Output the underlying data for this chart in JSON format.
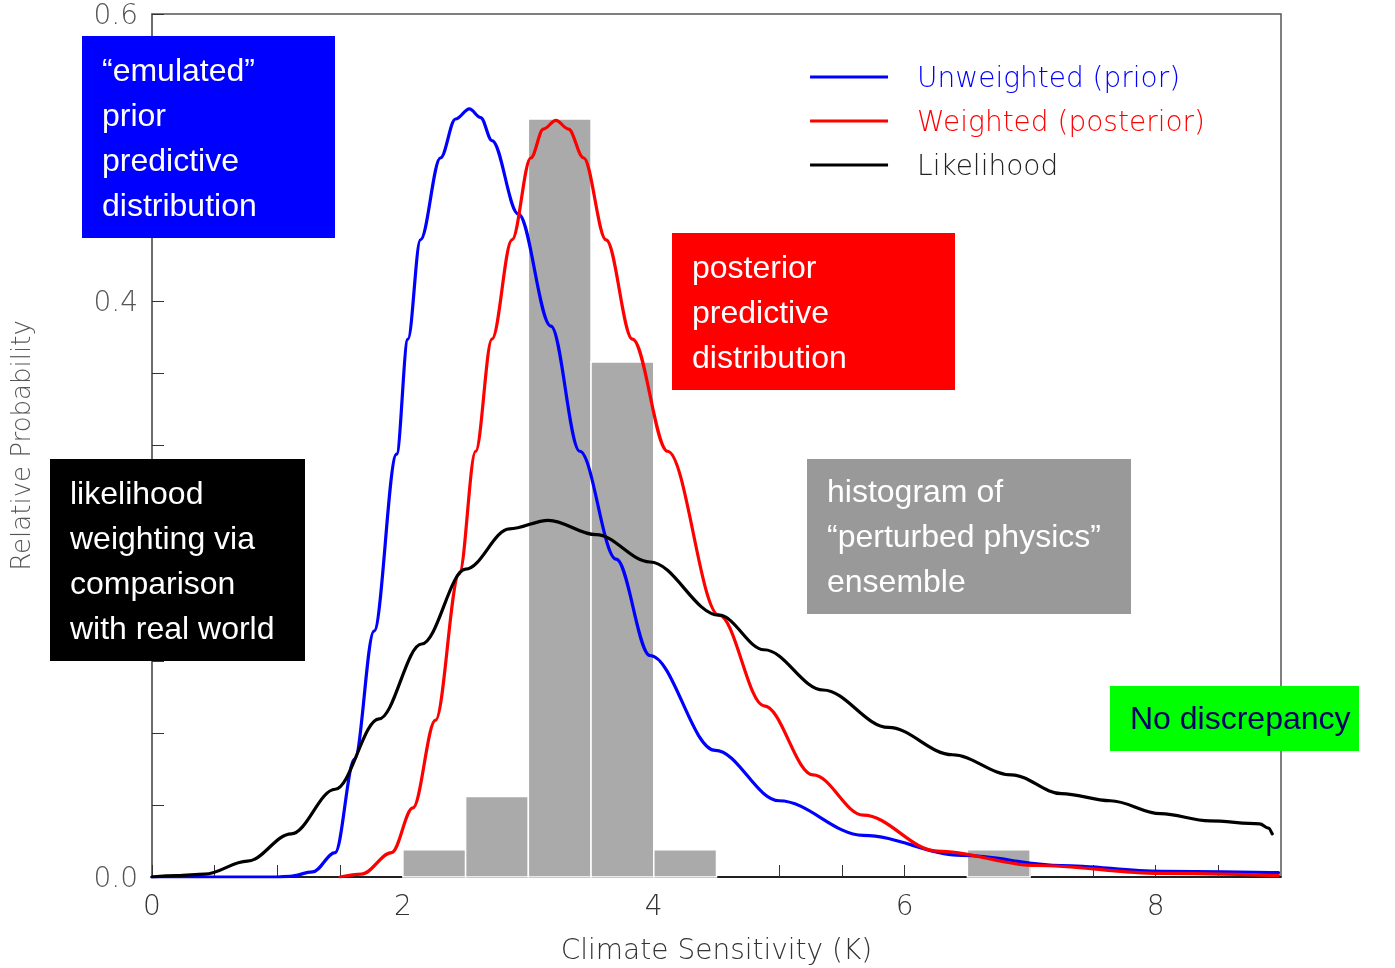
{
  "chart_data": {
    "type": "line",
    "xlabel": "Climate Sensitivity (K)",
    "ylabel": "Relative Probability",
    "xlim": [
      0,
      9
    ],
    "ylim": [
      0,
      0.6
    ],
    "xticks": [
      0,
      {
        "value": 0.5,
        "label": null
      },
      {
        "value": 1,
        "label": null
      },
      {
        "value": 1.5,
        "label": null
      },
      2,
      {
        "value": 2.5,
        "label": null
      },
      {
        "value": 3,
        "label": null
      },
      {
        "value": 3.5,
        "label": null
      },
      4,
      {
        "value": 4.5,
        "label": null
      },
      {
        "value": 5,
        "label": null
      },
      {
        "value": 5.5,
        "label": null
      },
      6,
      {
        "value": 6.5,
        "label": null
      },
      {
        "value": 7,
        "label": null
      },
      {
        "value": 7.5,
        "label": null
      },
      8,
      {
        "value": 8.5,
        "label": null
      }
    ],
    "yticks": [
      {
        "value": 0,
        "label": "0.0"
      },
      {
        "value": 0.05,
        "label": null
      },
      {
        "value": 0.1,
        "label": null
      },
      {
        "value": 0.15,
        "label": null
      },
      {
        "value": 0.2,
        "label": null
      },
      {
        "value": 0.25,
        "label": null
      },
      {
        "value": 0.3,
        "label": null
      },
      {
        "value": 0.35,
        "label": null
      },
      {
        "value": 0.4,
        "label": "0.4"
      },
      {
        "value": 0.45,
        "label": null
      },
      {
        "value": 0.5,
        "label": null
      },
      {
        "value": 0.55,
        "label": null
      },
      {
        "value": 0.6,
        "label": "0.6"
      }
    ],
    "grid": false,
    "legend": "top right",
    "series": [
      {
        "type": "histogram",
        "color": "#aaaaaa",
        "bins": [
          2,
          2.5,
          3,
          3.5,
          4,
          4.5,
          5,
          5.5,
          6,
          6.5,
          7
        ],
        "values": [
          0.019,
          0.056,
          0.527,
          0.358,
          0.019,
          0,
          0,
          0,
          0,
          0.019
        ]
      },
      {
        "name": "Unweighted (prior)",
        "color": "#0000ff",
        "x": [
          0,
          0.5,
          1.0,
          1.1,
          1.28,
          1.46,
          1.615,
          1.77,
          1.95,
          2.04,
          2.14,
          2.3,
          2.42,
          2.53,
          2.62,
          2.71,
          2.92,
          3.18,
          3.41,
          3.7,
          3.97,
          4.49,
          5.0,
          5.67,
          6.46,
          7.25,
          8.04,
          8.98
        ],
        "values": [
          0,
          0,
          0,
          0.0005,
          0.0035,
          0.017,
          0.082,
          0.171,
          0.294,
          0.374,
          0.443,
          0.5,
          0.527,
          0.534,
          0.528,
          0.512,
          0.461,
          0.383,
          0.296,
          0.221,
          0.154,
          0.088,
          0.053,
          0.029,
          0.015,
          0.008,
          0.004,
          0.003
        ]
      },
      {
        "name": "Weighted (posterior)",
        "color": "#ff0000",
        "x": [
          1.5,
          1.67,
          1.91,
          2.08,
          2.26,
          2.45,
          2.58,
          2.71,
          2.87,
          3.02,
          3.12,
          3.22,
          3.32,
          3.44,
          3.62,
          3.83,
          4.11,
          4.52,
          4.88,
          5.27,
          5.67,
          6.26,
          7.05,
          8.04,
          8.98
        ],
        "values": [
          0,
          0.002,
          0.017,
          0.048,
          0.109,
          0.211,
          0.296,
          0.374,
          0.443,
          0.5,
          0.52,
          0.526,
          0.52,
          0.5,
          0.443,
          0.374,
          0.296,
          0.182,
          0.119,
          0.071,
          0.043,
          0.018,
          0.008,
          0.0025,
          0.001
        ]
      },
      {
        "name": "Likelihood",
        "color": "#000000",
        "x": [
          0,
          0.2,
          0.42,
          0.76,
          1.11,
          1.46,
          1.81,
          2.15,
          2.5,
          2.85,
          3.16,
          3.54,
          3.97,
          4.52,
          4.88,
          5.35,
          5.87,
          6.38,
          6.85,
          7.25,
          7.64,
          8.04,
          8.43,
          8.83,
          8.9,
          8.93
        ],
        "values": [
          0,
          0.001,
          0.002,
          0.011,
          0.03,
          0.061,
          0.11,
          0.162,
          0.214,
          0.242,
          0.248,
          0.238,
          0.219,
          0.182,
          0.158,
          0.13,
          0.104,
          0.085,
          0.071,
          0.058,
          0.053,
          0.044,
          0.039,
          0.037,
          0.034,
          0.03
        ]
      }
    ],
    "annotations": [
      "“emulated”\nprior\npredictive\ndistribution",
      "posterior\npredictive\ndistribution",
      "likelihood\nweighting via\ncomparison\nwith real world",
      "histogram of\n“perturbed physics”\nensemble",
      "No discrepancy"
    ]
  }
}
